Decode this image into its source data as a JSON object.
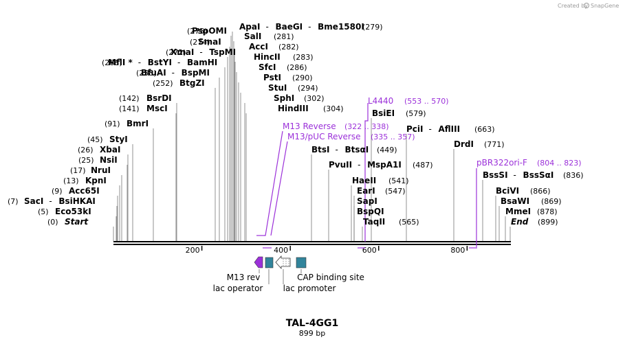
{
  "credit": {
    "prefix": "Created by",
    "brand": "SnapGene"
  },
  "plasmid": {
    "name": "TAL-4GG1",
    "length_label": "899 bp"
  },
  "axis": {
    "ticks": [
      {
        "bp": 200,
        "label": "200"
      },
      {
        "bp": 400,
        "label": "400"
      },
      {
        "bp": 600,
        "label": "600"
      },
      {
        "bp": 800,
        "label": "800"
      }
    ]
  },
  "enzyme_labels": [
    {
      "pos": "(275)",
      "names": [
        "PspOMI"
      ]
    },
    {
      "pos": "(274)",
      "names": [
        "SmaI"
      ]
    },
    {
      "pos": "(272)",
      "names": [
        "XmaI",
        "TspMI"
      ]
    },
    {
      "pos": "(268)",
      "names": [
        "MflI *",
        "BstYI",
        "BamHI"
      ]
    },
    {
      "pos": "(258)",
      "names": [
        "BfuAI",
        "BspMI"
      ]
    },
    {
      "pos": "(252)",
      "names": [
        "BtgZI"
      ]
    },
    {
      "pos": "(142)",
      "names": [
        "BsrDI"
      ]
    },
    {
      "pos": "(141)",
      "names": [
        "MscI"
      ]
    },
    {
      "pos": "(91)",
      "names": [
        "BmrI"
      ]
    },
    {
      "pos": "(45)",
      "names": [
        "StyI"
      ]
    },
    {
      "pos": "(26)",
      "names": [
        "XbaI"
      ]
    },
    {
      "pos": "(25)",
      "names": [
        "NsiI"
      ]
    },
    {
      "pos": "(17)",
      "names": [
        "NruI"
      ]
    },
    {
      "pos": "(13)",
      "names": [
        "KpnI"
      ]
    },
    {
      "pos": "(9)",
      "names": [
        "Acc65I"
      ]
    },
    {
      "pos": "(7)",
      "names": [
        "SacI",
        "BsiHKAI"
      ]
    },
    {
      "pos": "(5)",
      "names": [
        "Eco53kI"
      ]
    },
    {
      "pos": "(0)",
      "names": [
        "Start"
      ]
    },
    {
      "pos": "(279)",
      "names": [
        "ApaI",
        "BaeGI",
        "Bme1580I"
      ]
    },
    {
      "pos": "(281)",
      "names": [
        "SalI"
      ]
    },
    {
      "pos": "(282)",
      "names": [
        "AccI"
      ]
    },
    {
      "pos": "(283)",
      "names": [
        "HincII"
      ]
    },
    {
      "pos": "(286)",
      "names": [
        "SfcI"
      ]
    },
    {
      "pos": "(290)",
      "names": [
        "PstI"
      ]
    },
    {
      "pos": "(294)",
      "names": [
        "StuI"
      ]
    },
    {
      "pos": "(302)",
      "names": [
        "SphI"
      ]
    },
    {
      "pos": "(304)",
      "names": [
        "HindIII"
      ]
    },
    {
      "pos": "(449)",
      "names": [
        "BtsI",
        "BtsαI"
      ]
    },
    {
      "pos": "(487)",
      "names": [
        "PvuII",
        "MspA1I"
      ]
    },
    {
      "pos": "(541)",
      "names": [
        "HaeII"
      ]
    },
    {
      "pos": "(547)",
      "names": [
        "EarI"
      ]
    },
    {
      "pos": "",
      "names": [
        "SapI"
      ]
    },
    {
      "pos": "",
      "names": [
        "BspQI"
      ]
    },
    {
      "pos": "(565)",
      "names": [
        "TaqII"
      ]
    },
    {
      "pos": "(579)",
      "names": [
        "BsiEI"
      ]
    },
    {
      "pos": "(663)",
      "names": [
        "PciI",
        "AflIII"
      ]
    },
    {
      "pos": "(771)",
      "names": [
        "DrdI"
      ]
    },
    {
      "pos": "(836)",
      "names": [
        "BssSI",
        "BssSαI"
      ]
    },
    {
      "pos": "(866)",
      "names": [
        "BciVI"
      ]
    },
    {
      "pos": "(869)",
      "names": [
        "BsaWI"
      ]
    },
    {
      "pos": "(878)",
      "names": [
        "MmeI"
      ]
    },
    {
      "pos": "(899)",
      "names": [
        "End"
      ]
    }
  ],
  "primer_labels": [
    {
      "name": "L4440",
      "range": "(553 .. 570)"
    },
    {
      "name": "M13 Reverse",
      "range": "(322 .. 338)"
    },
    {
      "name": "M13/pUC Reverse",
      "range": "(335 .. 357)"
    },
    {
      "name": "pBR322ori-F",
      "range": "(804 .. 823)"
    }
  ],
  "features": [
    {
      "label": "M13 rev"
    },
    {
      "label": "lac operator"
    },
    {
      "label": "lac promoter"
    },
    {
      "label": "CAP binding site"
    }
  ],
  "colors": {
    "primer": "#9b30d9",
    "feature_teal": "#31849b",
    "axis": "#000000"
  }
}
